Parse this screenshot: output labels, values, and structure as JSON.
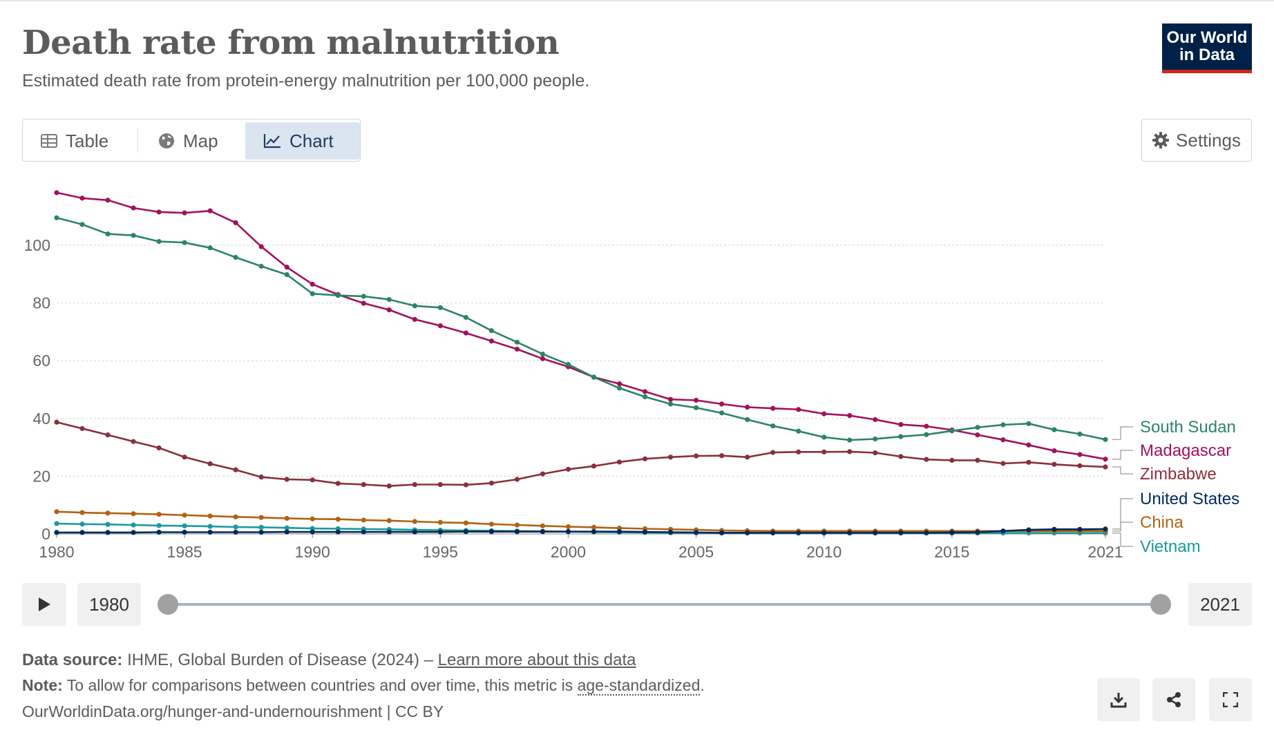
{
  "header": {
    "title": "Death rate from malnutrition",
    "subtitle": "Estimated death rate from protein-energy malnutrition per 100,000 people.",
    "logo_line1": "Our World",
    "logo_line2": "in Data"
  },
  "tabs": [
    {
      "label": "Table",
      "icon": "table-icon"
    },
    {
      "label": "Map",
      "icon": "globe-icon"
    },
    {
      "label": "Chart",
      "icon": "line-chart-icon",
      "active": true
    }
  ],
  "settings_label": "Settings",
  "timeline": {
    "start": "1980",
    "end": "2021",
    "play_icon": "play-icon"
  },
  "footer": {
    "source_label": "Data source:",
    "source_text": "IHME, Global Burden of Disease (2024) –",
    "learn_more": "Learn more about this data",
    "note_label": "Note:",
    "note_text": "To allow for comparisons between countries and over time, this metric is",
    "note_link": "age-standardized",
    "note_end": ".",
    "url": "OurWorldinData.org/hunger-and-undernourishment | CC BY"
  },
  "actions": [
    {
      "name": "download-button",
      "icon": "download-icon"
    },
    {
      "name": "share-button",
      "icon": "share-icon"
    },
    {
      "name": "fullscreen-button",
      "icon": "fullscreen-icon"
    }
  ],
  "chart_data": {
    "type": "line",
    "title": "Death rate from malnutrition",
    "ylim": [
      0,
      120
    ],
    "yticks": [
      0,
      20,
      40,
      60,
      80,
      100
    ],
    "xticks": [
      1980,
      1985,
      1990,
      1995,
      2000,
      2005,
      2010,
      2015,
      2021
    ],
    "grid": "horizontal dashed",
    "legend": "right, end of lines",
    "x": [
      1980,
      1981,
      1982,
      1983,
      1984,
      1985,
      1986,
      1987,
      1988,
      1989,
      1990,
      1991,
      1992,
      1993,
      1994,
      1995,
      1996,
      1997,
      1998,
      1999,
      2000,
      2001,
      2002,
      2003,
      2004,
      2005,
      2006,
      2007,
      2008,
      2009,
      2010,
      2011,
      2012,
      2013,
      2014,
      2015,
      2016,
      2017,
      2018,
      2019,
      2020,
      2021
    ],
    "series": [
      {
        "name": "South Sudan",
        "color": "#2c8465",
        "values": [
          109.5,
          107.2,
          103.9,
          103.4,
          101.3,
          100.9,
          99.1,
          95.8,
          92.7,
          89.8,
          83.2,
          82.6,
          82.3,
          81.2,
          79.0,
          78.4,
          75.0,
          70.4,
          66.4,
          62.3,
          58.7,
          54.3,
          50.5,
          47.5,
          45.0,
          43.7,
          41.9,
          39.6,
          37.4,
          35.6,
          33.5,
          32.5,
          32.9,
          33.7,
          34.4,
          35.7,
          36.9,
          37.8,
          38.2,
          36.1,
          34.6,
          32.7
        ]
      },
      {
        "name": "Madagascar",
        "color": "#a2115e",
        "values": [
          118.2,
          116.3,
          115.6,
          112.9,
          111.5,
          111.2,
          111.9,
          107.8,
          99.5,
          92.4,
          86.5,
          82.9,
          79.9,
          77.6,
          74.3,
          72.1,
          69.6,
          66.8,
          64.0,
          60.7,
          57.9,
          54.3,
          52.0,
          49.3,
          46.6,
          46.3,
          45.0,
          43.9,
          43.5,
          43.1,
          41.6,
          41.0,
          39.6,
          37.9,
          37.3,
          36.0,
          34.3,
          32.6,
          30.8,
          28.8,
          27.5,
          25.9
        ]
      },
      {
        "name": "Zimbabwe",
        "color": "#883039",
        "values": [
          38.7,
          36.5,
          34.3,
          32.0,
          29.8,
          26.6,
          24.3,
          22.2,
          19.7,
          18.9,
          18.7,
          17.5,
          17.1,
          16.6,
          17.1,
          17.1,
          17.0,
          17.6,
          18.9,
          20.8,
          22.4,
          23.5,
          24.9,
          26.0,
          26.6,
          27.0,
          27.1,
          26.6,
          28.2,
          28.4,
          28.4,
          28.5,
          28.1,
          26.8,
          25.8,
          25.5,
          25.5,
          24.4,
          24.8,
          24.1,
          23.6,
          23.2
        ]
      },
      {
        "name": "United States",
        "color": "#00295b",
        "values": [
          0.5,
          0.5,
          0.5,
          0.5,
          0.6,
          0.6,
          0.6,
          0.6,
          0.6,
          0.7,
          0.7,
          0.7,
          0.7,
          0.7,
          0.7,
          0.7,
          0.8,
          0.8,
          0.8,
          0.8,
          0.8,
          0.8,
          0.8,
          0.7,
          0.6,
          0.5,
          0.4,
          0.4,
          0.4,
          0.4,
          0.4,
          0.4,
          0.4,
          0.4,
          0.4,
          0.5,
          0.6,
          1.0,
          1.4,
          1.6,
          1.6,
          1.7
        ]
      },
      {
        "name": "China",
        "color": "#b16214",
        "values": [
          7.7,
          7.4,
          7.2,
          7.0,
          6.8,
          6.5,
          6.2,
          5.9,
          5.7,
          5.4,
          5.2,
          5.1,
          4.8,
          4.6,
          4.3,
          4.0,
          3.8,
          3.4,
          3.1,
          2.8,
          2.5,
          2.3,
          2.0,
          1.8,
          1.6,
          1.4,
          1.2,
          1.1,
          1.0,
          1.0,
          1.0,
          1.0,
          1.0,
          1.0,
          1.0,
          1.0,
          1.0,
          1.0,
          1.0,
          1.0,
          1.0,
          1.0
        ]
      },
      {
        "name": "Vietnam",
        "color": "#1a9a9a",
        "values": [
          3.6,
          3.4,
          3.3,
          3.1,
          2.9,
          2.8,
          2.6,
          2.4,
          2.3,
          2.1,
          1.9,
          1.8,
          1.7,
          1.6,
          1.4,
          1.3,
          1.2,
          1.1,
          1.0,
          0.9,
          0.8,
          0.7,
          0.6,
          0.5,
          0.4,
          0.4,
          0.3,
          0.3,
          0.3,
          0.3,
          0.3,
          0.3,
          0.3,
          0.3,
          0.3,
          0.3,
          0.3,
          0.3,
          0.3,
          0.3,
          0.3,
          0.3
        ]
      }
    ],
    "labels": [
      {
        "name": "South Sudan",
        "color": "#2c8465"
      },
      {
        "name": "Madagascar",
        "color": "#a2115e"
      },
      {
        "name": "Zimbabwe",
        "color": "#883039"
      },
      {
        "name": "United States",
        "color": "#00295b"
      },
      {
        "name": "China",
        "color": "#b16214"
      },
      {
        "name": "Vietnam",
        "color": "#1a9a9a"
      }
    ]
  }
}
